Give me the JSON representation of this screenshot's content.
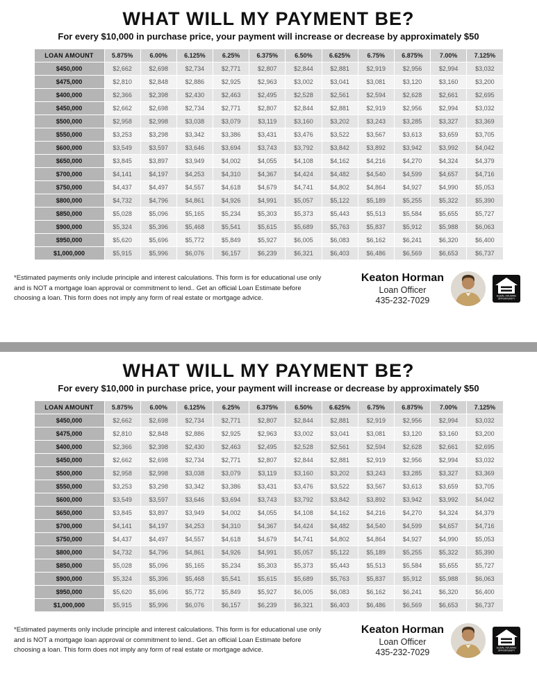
{
  "header": {
    "title": "WHAT WILL MY PAYMENT BE?",
    "subtitle": "For every $10,000 in purchase price, your payment will increase or decrease by approximately $50"
  },
  "table": {
    "columns": [
      "LOAN AMOUNT",
      "5.875%",
      "6.00%",
      "6.125%",
      "6.25%",
      "6.375%",
      "6.50%",
      "6.625%",
      "6.75%",
      "6.875%",
      "7.00%",
      "7.125%"
    ],
    "rows": [
      {
        "loan": "$450,000",
        "payments": [
          "$2,662",
          "$2,698",
          "$2,734",
          "$2,771",
          "$2,807",
          "$2,844",
          "$2,881",
          "$2,919",
          "$2,956",
          "$2,994",
          "$3,032"
        ]
      },
      {
        "loan": "$475,000",
        "payments": [
          "$2,810",
          "$2,848",
          "$2,886",
          "$2,925",
          "$2,963",
          "$3,002",
          "$3,041",
          "$3,081",
          "$3,120",
          "$3,160",
          "$3,200"
        ]
      },
      {
        "loan": "$400,000",
        "payments": [
          "$2,366",
          "$2,398",
          "$2,430",
          "$2,463",
          "$2,495",
          "$2,528",
          "$2,561",
          "$2,594",
          "$2,628",
          "$2,661",
          "$2,695"
        ]
      },
      {
        "loan": "$450,000",
        "payments": [
          "$2,662",
          "$2,698",
          "$2,734",
          "$2,771",
          "$2,807",
          "$2,844",
          "$2,881",
          "$2,919",
          "$2,956",
          "$2,994",
          "$3,032"
        ]
      },
      {
        "loan": "$500,000",
        "payments": [
          "$2,958",
          "$2,998",
          "$3,038",
          "$3,079",
          "$3,119",
          "$3,160",
          "$3,202",
          "$3,243",
          "$3,285",
          "$3,327",
          "$3,369"
        ]
      },
      {
        "loan": "$550,000",
        "payments": [
          "$3,253",
          "$3,298",
          "$3,342",
          "$3,386",
          "$3,431",
          "$3,476",
          "$3,522",
          "$3,567",
          "$3,613",
          "$3,659",
          "$3,705"
        ]
      },
      {
        "loan": "$600,000",
        "payments": [
          "$3,549",
          "$3,597",
          "$3,646",
          "$3,694",
          "$3,743",
          "$3,792",
          "$3,842",
          "$3,892",
          "$3,942",
          "$3,992",
          "$4,042"
        ]
      },
      {
        "loan": "$650,000",
        "payments": [
          "$3,845",
          "$3,897",
          "$3,949",
          "$4,002",
          "$4,055",
          "$4,108",
          "$4,162",
          "$4,216",
          "$4,270",
          "$4,324",
          "$4,379"
        ]
      },
      {
        "loan": "$700,000",
        "payments": [
          "$4,141",
          "$4,197",
          "$4,253",
          "$4,310",
          "$4,367",
          "$4,424",
          "$4,482",
          "$4,540",
          "$4,599",
          "$4,657",
          "$4,716"
        ]
      },
      {
        "loan": "$750,000",
        "payments": [
          "$4,437",
          "$4,497",
          "$4,557",
          "$4,618",
          "$4,679",
          "$4,741",
          "$4,802",
          "$4,864",
          "$4,927",
          "$4,990",
          "$5,053"
        ]
      },
      {
        "loan": "$800,000",
        "payments": [
          "$4,732",
          "$4,796",
          "$4,861",
          "$4,926",
          "$4,991",
          "$5,057",
          "$5,122",
          "$5,189",
          "$5,255",
          "$5,322",
          "$5,390"
        ]
      },
      {
        "loan": "$850,000",
        "payments": [
          "$5,028",
          "$5,096",
          "$5,165",
          "$5,234",
          "$5,303",
          "$5,373",
          "$5,443",
          "$5,513",
          "$5,584",
          "$5,655",
          "$5,727"
        ]
      },
      {
        "loan": "$900,000",
        "payments": [
          "$5,324",
          "$5,396",
          "$5,468",
          "$5,541",
          "$5,615",
          "$5,689",
          "$5,763",
          "$5,837",
          "$5,912",
          "$5,988",
          "$6,063"
        ]
      },
      {
        "loan": "$950,000",
        "payments": [
          "$5,620",
          "$5,696",
          "$5,772",
          "$5,849",
          "$5,927",
          "$6,005",
          "$6,083",
          "$6,162",
          "$6,241",
          "$6,320",
          "$6,400"
        ]
      },
      {
        "loan": "$1,000,000",
        "payments": [
          "$5,915",
          "$5,996",
          "$6,076",
          "$6,157",
          "$6,239",
          "$6,321",
          "$6,403",
          "$6,486",
          "$6,569",
          "$6,653",
          "$6,737"
        ]
      }
    ]
  },
  "disclaimer": "*Estimated payments only include principle and interest calculations. This form is for educational use only and is NOT a mortgage loan approval or commitment to lend.. Get an official Loan Estimate before choosing a loan.   This form does not imply any form of real estate or mortgage advice.",
  "contact": {
    "name": "Keaton Horman",
    "role": "Loan Officer",
    "phone": "435-232-7029"
  },
  "icons": {
    "agent_photo": "agent-headshot",
    "equal_housing": "equal-housing-opportunity-logo"
  },
  "colors": {
    "loan_column": "#b5b5b5",
    "rate_header": "#d2d2d2",
    "row_alt": "#e4e4e4",
    "divider": "#9d9d9d"
  }
}
